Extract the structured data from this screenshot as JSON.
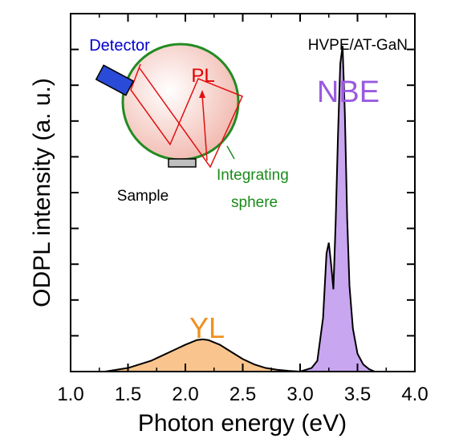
{
  "chart_data": {
    "type": "area",
    "title": "",
    "xlabel": "Photon energy (eV)",
    "ylabel": "ODPL intensity (a. u.)",
    "xlim": [
      1.0,
      4.0
    ],
    "ylim": [
      0,
      1.0
    ],
    "xticks": [
      "1.0",
      "1.5",
      "2.0",
      "2.5",
      "3.0",
      "3.5",
      "4.0"
    ],
    "xtick_values": [
      1.0,
      1.5,
      2.0,
      2.5,
      3.0,
      3.5,
      4.0
    ],
    "ytick_values": [
      0.1,
      0.2,
      0.3,
      0.4,
      0.5,
      0.6,
      0.7,
      0.8,
      0.9
    ],
    "grid": false,
    "sample_label": "HVPE/AT-GaN",
    "series": [
      {
        "name": "YL",
        "color": "#f9c48e",
        "x": [
          1.3,
          1.4,
          1.5,
          1.6,
          1.7,
          1.8,
          1.9,
          2.0,
          2.1,
          2.15,
          2.2,
          2.3,
          2.4,
          2.5,
          2.6,
          2.7,
          2.8,
          2.9,
          3.0
        ],
        "y": [
          0.0,
          0.005,
          0.01,
          0.02,
          0.03,
          0.045,
          0.06,
          0.075,
          0.088,
          0.09,
          0.088,
          0.075,
          0.055,
          0.035,
          0.02,
          0.01,
          0.005,
          0.002,
          0.0
        ]
      },
      {
        "name": "NBE",
        "color": "#c9a6f0",
        "x": [
          2.9,
          3.0,
          3.1,
          3.15,
          3.2,
          3.23,
          3.25,
          3.27,
          3.29,
          3.31,
          3.33,
          3.35,
          3.37,
          3.39,
          3.41,
          3.43,
          3.46,
          3.5,
          3.55,
          3.6,
          3.65
        ],
        "y": [
          0.0,
          0.0,
          0.01,
          0.03,
          0.15,
          0.33,
          0.36,
          0.3,
          0.23,
          0.42,
          0.66,
          0.86,
          0.91,
          0.72,
          0.43,
          0.24,
          0.12,
          0.05,
          0.02,
          0.007,
          0.0
        ]
      }
    ]
  },
  "annotations": {
    "yl": "YL",
    "nbe": "NBE",
    "pl": "PL",
    "detector": "Detector",
    "sample": "Sample",
    "sphere_line1": "Integrating",
    "sphere_line2": "sphere"
  },
  "colors": {
    "yl_text": "#f0901e",
    "nbe_text": "#9a5ae0",
    "pl_text": "#e00000",
    "detector_text": "#0000cc",
    "sphere_text": "#1a8a1a",
    "sphere_fill": "#f4c9c2",
    "sphere_stroke": "#228b22",
    "ray": "#e01010",
    "detector_body": "#2a4ad8"
  }
}
